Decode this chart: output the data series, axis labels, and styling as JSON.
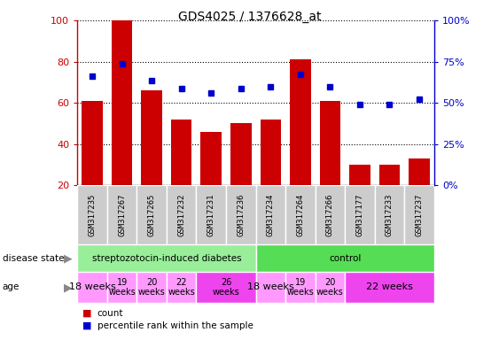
{
  "title": "GDS4025 / 1376628_at",
  "samples": [
    "GSM317235",
    "GSM317267",
    "GSM317265",
    "GSM317232",
    "GSM317231",
    "GSM317236",
    "GSM317234",
    "GSM317264",
    "GSM317266",
    "GSM317177",
    "GSM317233",
    "GSM317237"
  ],
  "bar_heights": [
    61,
    100,
    66,
    52,
    46,
    50,
    52,
    81,
    61,
    30,
    30,
    33
  ],
  "dot_values": [
    73,
    79,
    71,
    67,
    65,
    67,
    68,
    74,
    68,
    59,
    59,
    62
  ],
  "ylim_left": [
    20,
    100
  ],
  "bar_color": "#cc0000",
  "dot_color": "#0000cc",
  "left_yticks": [
    20,
    40,
    60,
    80,
    100
  ],
  "right_yticks": [
    0,
    25,
    50,
    75,
    100
  ],
  "right_yticklabels": [
    "0%",
    "25%",
    "50%",
    "75%",
    "100%"
  ],
  "disease_state_groups": [
    {
      "label": "streptozotocin-induced diabetes",
      "start": 0,
      "end": 6,
      "color": "#99ee99"
    },
    {
      "label": "control",
      "start": 6,
      "end": 12,
      "color": "#55dd55"
    }
  ],
  "age_groups": [
    {
      "label": "18 weeks",
      "cols": [
        0
      ],
      "color": "#ff99ff",
      "fontsize": 8
    },
    {
      "label": "19\nweeks",
      "cols": [
        1
      ],
      "color": "#ff99ff",
      "fontsize": 7
    },
    {
      "label": "20\nweeks",
      "cols": [
        2
      ],
      "color": "#ff99ff",
      "fontsize": 7
    },
    {
      "label": "22\nweeks",
      "cols": [
        3
      ],
      "color": "#ff99ff",
      "fontsize": 7
    },
    {
      "label": "26\nweeks",
      "cols": [
        4,
        5
      ],
      "color": "#ee44ee",
      "fontsize": 7
    },
    {
      "label": "18 weeks",
      "cols": [
        6
      ],
      "color": "#ff99ff",
      "fontsize": 8
    },
    {
      "label": "19\nweeks",
      "cols": [
        7
      ],
      "color": "#ff99ff",
      "fontsize": 7
    },
    {
      "label": "20\nweeks",
      "cols": [
        8
      ],
      "color": "#ff99ff",
      "fontsize": 7
    },
    {
      "label": "22 weeks",
      "cols": [
        9,
        10,
        11
      ],
      "color": "#ee44ee",
      "fontsize": 8
    }
  ],
  "sample_box_color": "#cccccc",
  "legend_count_color": "#cc0000",
  "legend_dot_color": "#0000cc"
}
